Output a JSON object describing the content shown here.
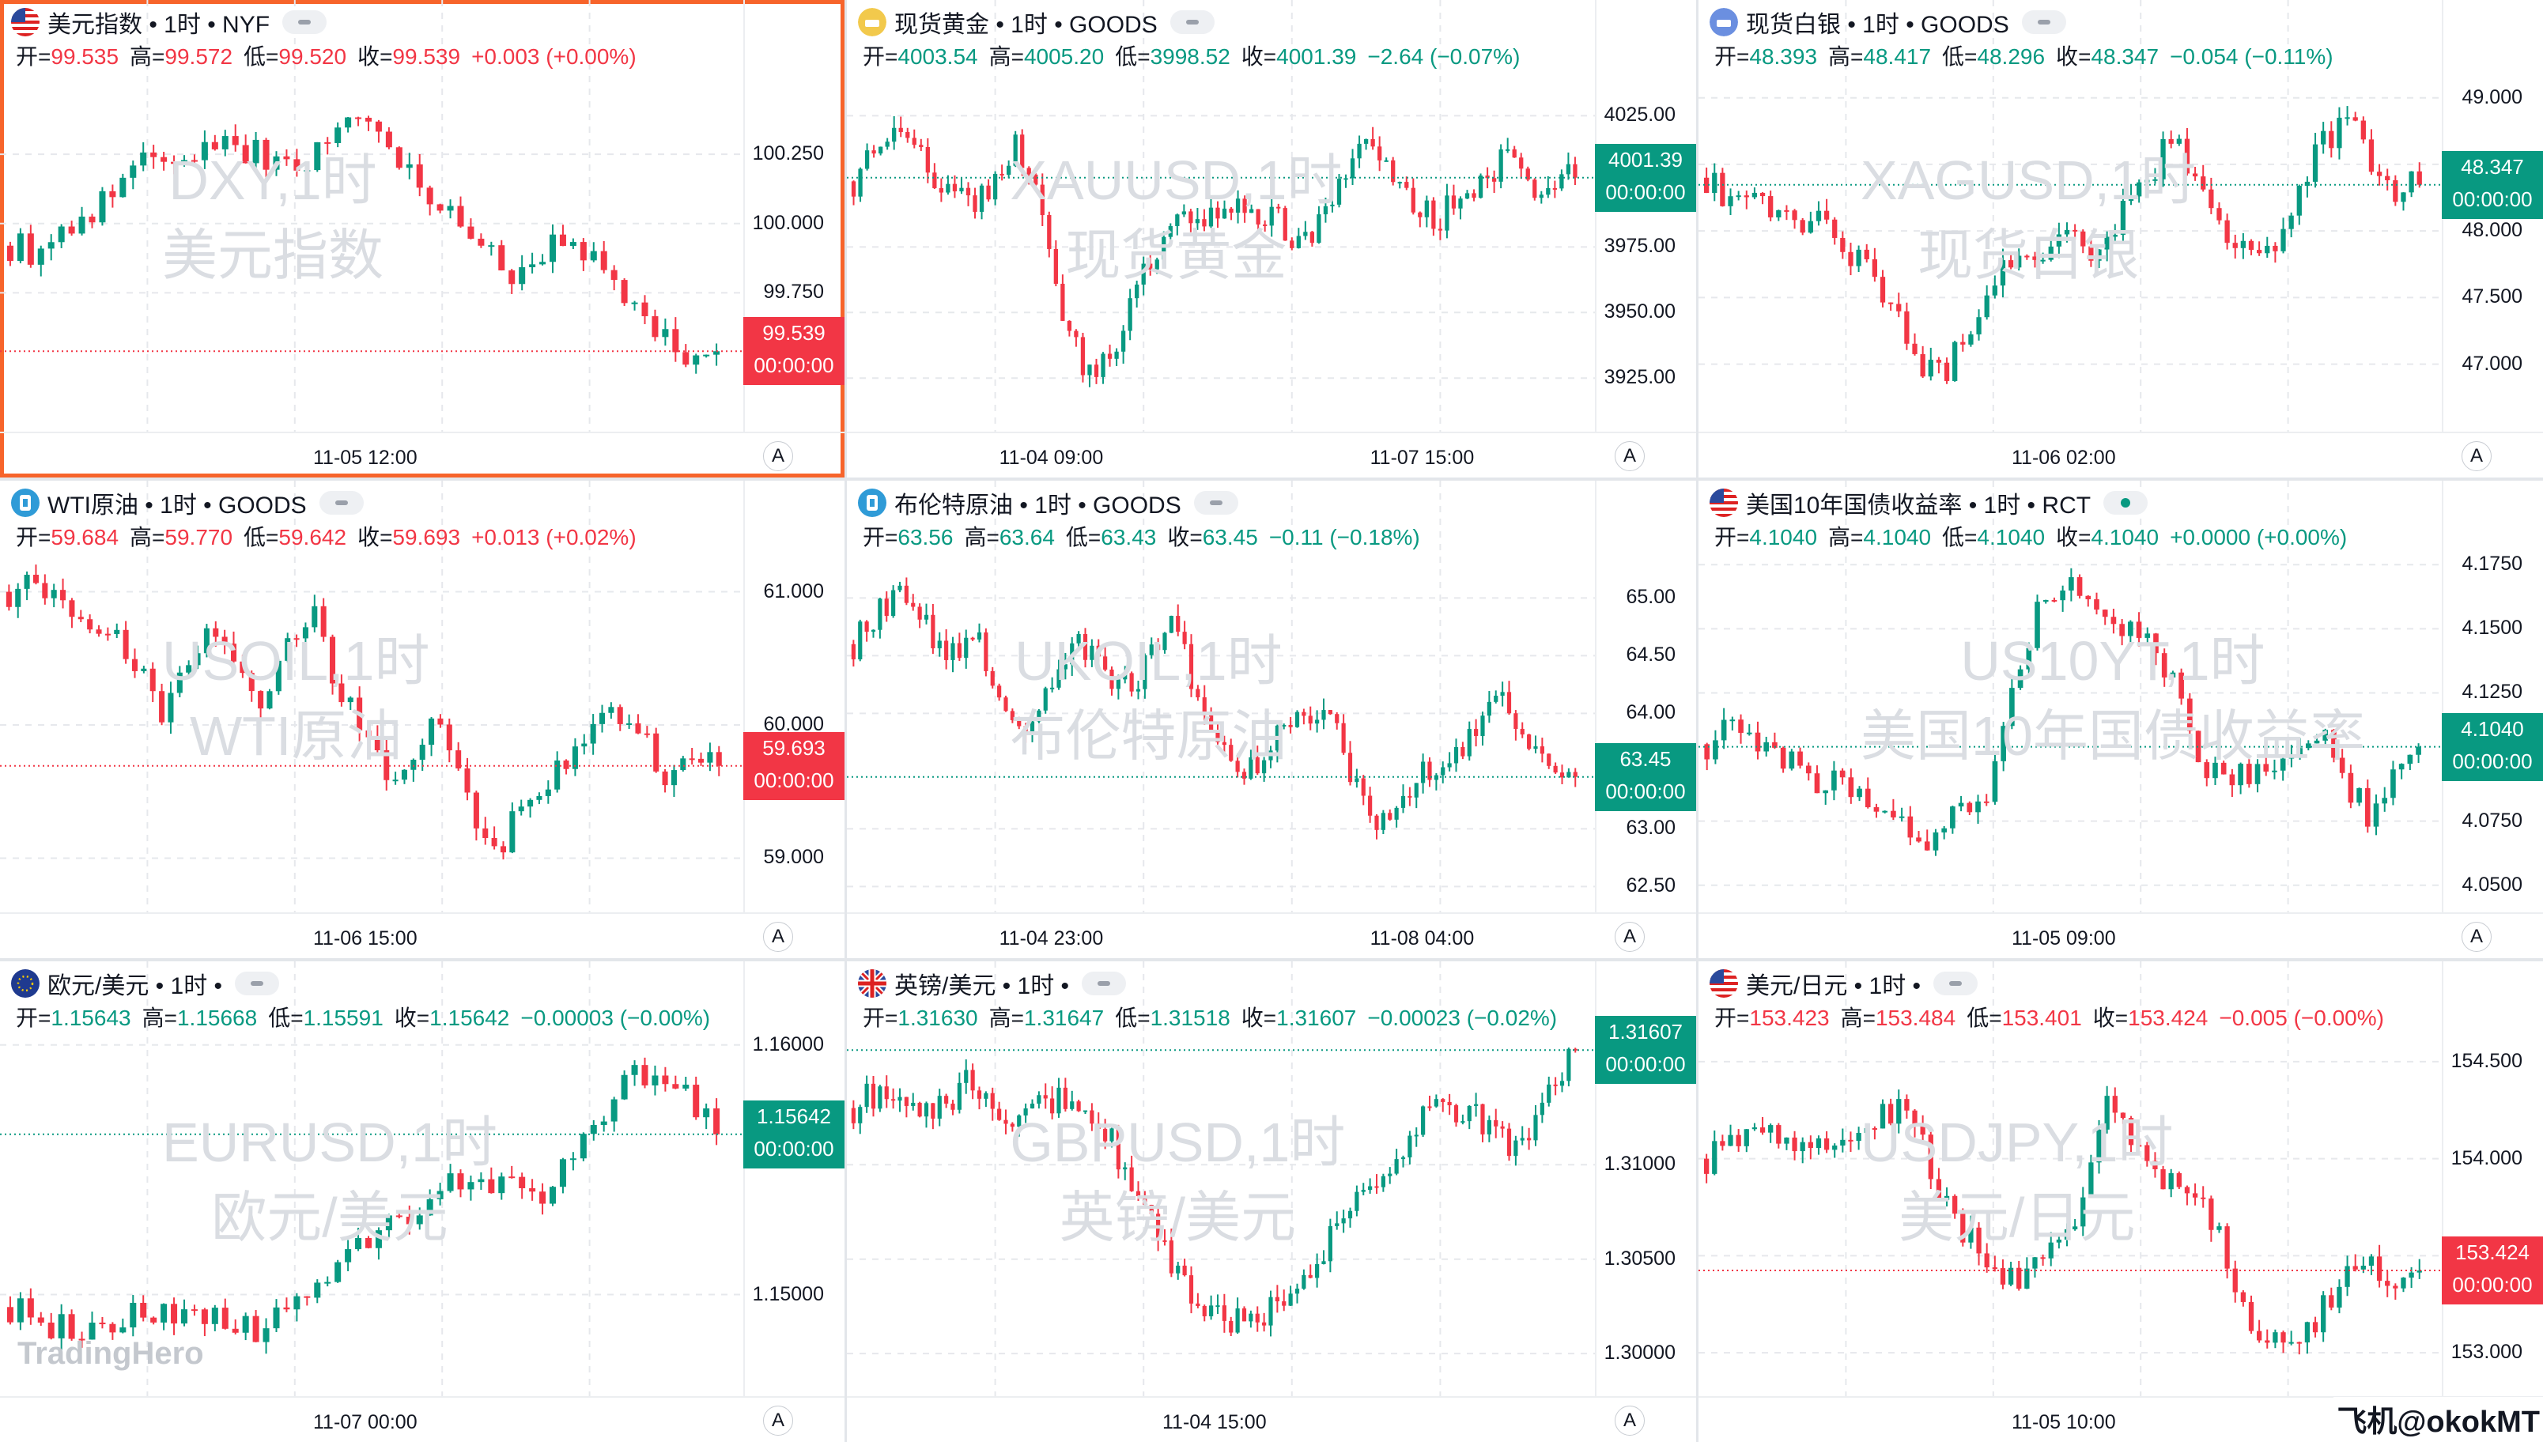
{
  "brand": "TradingHero",
  "corner_text": "飞机@okokMT",
  "colors": {
    "up": "#089981",
    "down": "#f23645",
    "accent": "#f7642b"
  },
  "labels": {
    "open": "开",
    "high": "高",
    "low": "低",
    "close": "收",
    "axis_mode": "A"
  },
  "panels": [
    {
      "id": "dxy",
      "selected": true,
      "flag": "us-flag-icon",
      "title": "美元指数 • 1时 • NYF",
      "pill": "idle",
      "wm1": "DXY,1时",
      "wm2": "美元指数",
      "open": "99.535",
      "high": "99.572",
      "low": "99.520",
      "close": "99.539",
      "change": "+0.003 (+0.00%)",
      "dir": "dn",
      "last_label": "99.539",
      "countdown": "00:00:00",
      "last": 99.539,
      "yticks": [
        {
          "v": 100.25,
          "t": "100.250"
        },
        {
          "v": 100.0,
          "t": "100.000"
        },
        {
          "v": 99.75,
          "t": "99.750"
        }
      ],
      "xticks": [
        "11-05 12:00"
      ],
      "chart_data": {
        "type": "candlestick",
        "ylim": [
          99.3,
          100.55
        ],
        "path": [
          99.92,
          99.9,
          99.95,
          100.02,
          100.05,
          100.15,
          100.22,
          100.2,
          100.23,
          100.28,
          100.3,
          100.26,
          100.22,
          100.2,
          100.27,
          100.36,
          100.4,
          100.3,
          100.22,
          100.1,
          100.02,
          99.94,
          99.85,
          99.82,
          99.87,
          99.93,
          99.9,
          99.8,
          99.72,
          99.63,
          99.55,
          99.52,
          99.539
        ],
        "n": 70
      }
    },
    {
      "id": "xau",
      "flag": "gold-icon",
      "title": "现货黄金 • 1时 • GOODS",
      "pill": "idle",
      "wm1": "XAUUSD,1时",
      "wm2": "现货黄金",
      "open": "4003.54",
      "high": "4005.20",
      "low": "3998.52",
      "close": "4001.39",
      "change": "−2.64 (−0.07%)",
      "dir": "up",
      "last_label": "4001.39",
      "countdown": "00:00:00",
      "last": 4001.39,
      "yticks": [
        {
          "v": 4025,
          "t": "4025.00"
        },
        {
          "v": 3975,
          "t": "3975.00"
        },
        {
          "v": 3950,
          "t": "3950.00"
        },
        {
          "v": 3925,
          "t": "3925.00"
        }
      ],
      "xticks": [
        "11-04 09:00",
        "11-07 15:00"
      ],
      "chart_data": {
        "type": "candlestick",
        "ylim": [
          3910,
          4042
        ],
        "path": [
          4000,
          4018,
          4024,
          4010,
          3995,
          3990,
          4000,
          4015,
          3990,
          3950,
          3925,
          3930,
          3960,
          3975,
          3985,
          3980,
          3995,
          3985,
          3990,
          3975,
          3985,
          4000,
          4015,
          4005,
          3990,
          3985,
          3995,
          4002,
          4008,
          3998,
          4000,
          4001.39
        ],
        "n": 108
      }
    },
    {
      "id": "xag",
      "flag": "silver-icon",
      "title": "现货白银 • 1时 • GOODS",
      "pill": "idle",
      "wm1": "XAGUSD,1时",
      "wm2": "现货白银",
      "open": "48.393",
      "high": "48.417",
      "low": "48.296",
      "close": "48.347",
      "change": "−0.054 (−0.11%)",
      "dir": "up",
      "last_label": "48.347",
      "countdown": "00:00:00",
      "last": 48.347,
      "yticks": [
        {
          "v": 49.0,
          "t": "49.000"
        },
        {
          "v": 48.5,
          "t": "48.500"
        },
        {
          "v": 48.0,
          "t": "48.000"
        },
        {
          "v": 47.5,
          "t": "47.500"
        },
        {
          "v": 47.0,
          "t": "47.000"
        }
      ],
      "xticks": [
        "11-06 02:00"
      ],
      "chart_data": {
        "type": "candlestick",
        "ylim": [
          46.6,
          49.2
        ],
        "path": [
          48.4,
          48.2,
          48.3,
          48.1,
          48.0,
          48.05,
          47.9,
          47.7,
          47.5,
          47.1,
          46.9,
          47.1,
          47.5,
          47.8,
          47.7,
          47.9,
          48.0,
          47.8,
          48.1,
          48.3,
          48.7,
          48.5,
          48.2,
          47.9,
          47.8,
          48.0,
          48.4,
          48.7,
          48.8,
          48.5,
          48.3,
          48.347
        ],
        "n": 90
      }
    },
    {
      "id": "wti",
      "flag": "oil-icon",
      "title": "WTI原油 • 1时 • GOODS",
      "pill": "idle",
      "wm1": "USOIL,1时",
      "wm2": "WTI原油",
      "open": "59.684",
      "high": "59.770",
      "low": "59.642",
      "close": "59.693",
      "change": "+0.013 (+0.02%)",
      "dir": "dn",
      "last_label": "59.693",
      "countdown": "00:00:00",
      "last": 59.693,
      "yticks": [
        {
          "v": 61.0,
          "t": "61.000"
        },
        {
          "v": 60.0,
          "t": "60.000"
        },
        {
          "v": 59.0,
          "t": "59.000"
        }
      ],
      "xticks": [
        "11-06 15:00"
      ],
      "chart_data": {
        "type": "candlestick",
        "ylim": [
          58.7,
          61.3
        ],
        "path": [
          61.0,
          61.1,
          60.9,
          60.8,
          60.7,
          60.5,
          60.0,
          60.4,
          60.7,
          60.5,
          60.2,
          60.6,
          60.8,
          60.3,
          59.9,
          59.6,
          59.8,
          60.0,
          59.5,
          59.0,
          59.3,
          59.6,
          59.7,
          59.9,
          60.1,
          59.9,
          59.6,
          59.8,
          59.693
        ],
        "n": 80
      }
    },
    {
      "id": "brent",
      "flag": "oil-icon",
      "title": "布伦特原油 • 1时 • GOODS",
      "pill": "idle",
      "wm1": "UKOIL,1时",
      "wm2": "布伦特原油",
      "open": "63.56",
      "high": "63.64",
      "low": "63.43",
      "close": "63.45",
      "change": "−0.11 (−0.18%)",
      "dir": "up",
      "last_label": "63.45",
      "countdown": "00:00:00",
      "last": 63.45,
      "yticks": [
        {
          "v": 65.0,
          "t": "65.00"
        },
        {
          "v": 64.5,
          "t": "64.50"
        },
        {
          "v": 64.0,
          "t": "64.00"
        },
        {
          "v": 63.0,
          "t": "63.00"
        },
        {
          "v": 62.5,
          "t": "62.50"
        }
      ],
      "xticks": [
        "11-04 23:00",
        "11-08 04:00"
      ],
      "chart_data": {
        "type": "candlestick",
        "ylim": [
          62.4,
          65.4
        ],
        "path": [
          64.6,
          64.9,
          65.0,
          64.7,
          64.5,
          64.6,
          64.0,
          63.9,
          64.3,
          64.6,
          64.4,
          64.2,
          64.5,
          64.8,
          64.0,
          63.6,
          63.5,
          63.8,
          63.9,
          64.0,
          63.5,
          63.0,
          63.2,
          63.5,
          63.6,
          63.9,
          64.1,
          63.8,
          63.6,
          63.45
        ],
        "n": 110
      }
    },
    {
      "id": "us10y",
      "flag": "us-flag-icon",
      "title": "美国10年国债收益率 • 1时 • RCT",
      "pill": "live",
      "wm1": "US10YT,1时",
      "wm2": "美国10年国债收益率",
      "open": "4.1040",
      "high": "4.1040",
      "low": "4.1040",
      "close": "4.1040",
      "change": "+0.0000 (+0.00%)",
      "dir": "up",
      "last_label": "4.1040",
      "countdown": "00:00:00",
      "last": 4.104,
      "yticks": [
        {
          "v": 4.175,
          "t": "4.1750"
        },
        {
          "v": 4.15,
          "t": "4.1500"
        },
        {
          "v": 4.125,
          "t": "4.1250"
        },
        {
          "v": 4.075,
          "t": "4.0750"
        },
        {
          "v": 4.05,
          "t": "4.0500"
        }
      ],
      "xticks": [
        "11-05 09:00"
      ],
      "chart_data": {
        "type": "candlestick",
        "ylim": [
          4.045,
          4.18
        ],
        "path": [
          4.105,
          4.112,
          4.108,
          4.102,
          4.095,
          4.09,
          4.088,
          4.085,
          4.075,
          4.068,
          4.072,
          4.08,
          4.09,
          4.13,
          4.16,
          4.168,
          4.162,
          4.155,
          4.15,
          4.14,
          4.12,
          4.095,
          4.092,
          4.095,
          4.1,
          4.105,
          4.108,
          4.09,
          4.075,
          4.095,
          4.104
        ],
        "n": 85
      }
    },
    {
      "id": "eurusd",
      "flag": "eu-flag-icon",
      "title": "欧元/美元 • 1时 •",
      "pill": "idle",
      "wm1": "EURUSD,1时",
      "wm2": "欧元/美元",
      "open": "1.15643",
      "high": "1.15668",
      "low": "1.15591",
      "close": "1.15642",
      "change": "−0.00003 (−0.00%)",
      "dir": "up",
      "last_label": "1.15642",
      "countdown": "00:00:00",
      "last": 1.15642,
      "yticks": [
        {
          "v": 1.16,
          "t": "1.16000"
        },
        {
          "v": 1.15,
          "t": "1.15000"
        }
      ],
      "xticks": [
        "11-07 00:00"
      ],
      "chart_data": {
        "type": "candlestick",
        "ylim": [
          1.1465,
          1.1605
        ],
        "path": [
          1.1495,
          1.149,
          1.1485,
          1.1488,
          1.1492,
          1.149,
          1.1495,
          1.1488,
          1.1485,
          1.1492,
          1.1505,
          1.152,
          1.1525,
          1.153,
          1.1545,
          1.155,
          1.1545,
          1.1538,
          1.1548,
          1.157,
          1.1585,
          1.159,
          1.158,
          1.15642
        ],
        "n": 70
      }
    },
    {
      "id": "gbpusd",
      "flag": "uk-flag-icon",
      "title": "英镑/美元 • 1时 •",
      "pill": "idle",
      "wm1": "GBPUSD,1时",
      "wm2": "英镑/美元",
      "open": "1.31630",
      "high": "1.31647",
      "low": "1.31518",
      "close": "1.31607",
      "change": "−0.00023 (−0.02%)",
      "dir": "up",
      "last_label": "1.31607",
      "countdown": "00:00:00",
      "last": 1.31607,
      "yticks": [
        {
          "v": 1.31,
          "t": "1.31000"
        },
        {
          "v": 1.305,
          "t": "1.30500"
        },
        {
          "v": 1.3,
          "t": "1.30000"
        }
      ],
      "xticks": [
        "11-04 15:00"
      ],
      "chart_data": {
        "type": "candlestick",
        "ylim": [
          1.2985,
          1.317
        ],
        "path": [
          1.313,
          1.314,
          1.3125,
          1.313,
          1.3145,
          1.313,
          1.3125,
          1.3135,
          1.3128,
          1.311,
          1.308,
          1.305,
          1.3025,
          1.3015,
          1.302,
          1.303,
          1.305,
          1.3075,
          1.309,
          1.311,
          1.3135,
          1.313,
          1.312,
          1.3105,
          1.3135,
          1.31607
        ],
        "n": 110
      }
    },
    {
      "id": "usdjpy",
      "flag": "us-flag-icon",
      "title": "美元/日元 • 1时 •",
      "pill": "idle",
      "wm1": "USDJPY,1时",
      "wm2": "美元/日元",
      "open": "153.423",
      "high": "153.484",
      "low": "153.401",
      "close": "153.424",
      "change": "−0.005 (−0.00%)",
      "dir": "dn",
      "last_label": "153.424",
      "countdown": "00:00:00",
      "last": 153.424,
      "yticks": [
        {
          "v": 154.5,
          "t": "154.500"
        },
        {
          "v": 154.0,
          "t": "154.000"
        },
        {
          "v": 153.5,
          "t": "153.500"
        },
        {
          "v": 153.0,
          "t": "153.000"
        }
      ],
      "xticks": [
        "11-05 10:00"
      ],
      "chart_data": {
        "type": "candlestick",
        "ylim": [
          152.85,
          154.65
        ],
        "path": [
          154.0,
          154.1,
          154.15,
          154.05,
          154.1,
          154.15,
          154.2,
          154.25,
          153.9,
          153.6,
          153.5,
          153.3,
          153.6,
          153.7,
          154.3,
          154.1,
          153.9,
          153.8,
          153.6,
          153.2,
          153.05,
          153.1,
          153.3,
          153.5,
          153.3,
          153.424
        ],
        "n": 90
      }
    }
  ]
}
